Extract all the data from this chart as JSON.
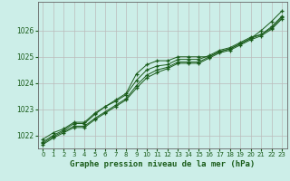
{
  "title": "Graphe pression niveau de la mer (hPa)",
  "background_color": "#cceee8",
  "grid_color": "#bbbbbb",
  "line_color": "#1a5c1a",
  "marker_color": "#1a5c1a",
  "xlim": [
    -0.5,
    23.5
  ],
  "ylim": [
    1021.5,
    1027.1
  ],
  "yticks": [
    1022,
    1023,
    1024,
    1025,
    1026
  ],
  "xticks": [
    0,
    1,
    2,
    3,
    4,
    5,
    6,
    7,
    8,
    9,
    10,
    11,
    12,
    13,
    14,
    15,
    16,
    17,
    18,
    19,
    20,
    21,
    22,
    23
  ],
  "series": [
    [
      1021.75,
      1022.0,
      1022.2,
      1022.45,
      1022.45,
      1022.8,
      1023.1,
      1023.35,
      1023.6,
      1024.35,
      1024.7,
      1024.85,
      1024.85,
      1025.0,
      1025.0,
      1025.0,
      1025.0,
      1025.2,
      1025.3,
      1025.5,
      1025.7,
      1026.0,
      1026.35,
      1026.75
    ],
    [
      1021.85,
      1022.1,
      1022.25,
      1022.5,
      1022.5,
      1022.85,
      1023.1,
      1023.3,
      1023.55,
      1024.1,
      1024.5,
      1024.65,
      1024.7,
      1024.9,
      1024.9,
      1024.9,
      1025.05,
      1025.25,
      1025.35,
      1025.55,
      1025.75,
      1025.85,
      1026.15,
      1026.55
    ],
    [
      1021.7,
      1021.95,
      1022.15,
      1022.35,
      1022.35,
      1022.65,
      1022.9,
      1023.15,
      1023.4,
      1023.9,
      1024.3,
      1024.5,
      1024.6,
      1024.8,
      1024.8,
      1024.8,
      1025.0,
      1025.2,
      1025.3,
      1025.5,
      1025.7,
      1025.85,
      1026.1,
      1026.5
    ],
    [
      1021.65,
      1021.9,
      1022.1,
      1022.3,
      1022.3,
      1022.6,
      1022.85,
      1023.1,
      1023.35,
      1023.8,
      1024.2,
      1024.4,
      1024.55,
      1024.75,
      1024.75,
      1024.75,
      1024.95,
      1025.15,
      1025.25,
      1025.45,
      1025.65,
      1025.8,
      1026.05,
      1026.45
    ]
  ]
}
